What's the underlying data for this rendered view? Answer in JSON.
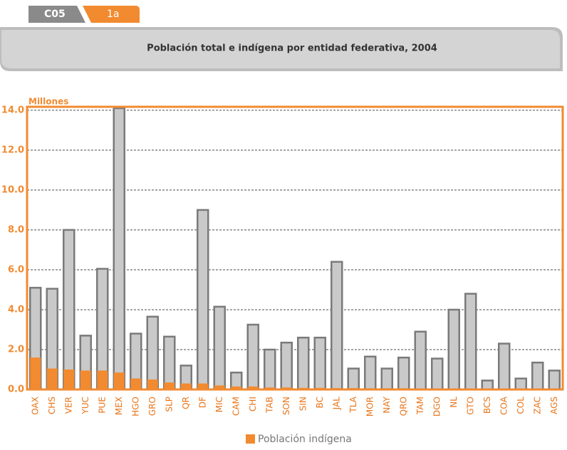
{
  "header": {
    "tab_code": "C05",
    "tab_sub": "1a"
  },
  "chart_data": {
    "type": "bar",
    "title": "Población total e indígena por entidad federativa, 2004",
    "y_label": "Millones",
    "categories": [
      "OAX",
      "CHS",
      "VER",
      "YUC",
      "PUE",
      "MEX",
      "HGO",
      "GRO",
      "SLP",
      "QR",
      "DF",
      "MIC",
      "CAM",
      "CHI",
      "TAB",
      "SON",
      "SIN",
      "BC",
      "JAL",
      "TLA",
      "MOR",
      "NAY",
      "QRO",
      "TAM",
      "DGO",
      "NL",
      "GTO",
      "BCS",
      "COA",
      "COL",
      "ZAC",
      "AGS"
    ],
    "series": [
      {
        "color": "#c9c9c9",
        "values": [
          5.1,
          5.05,
          8.0,
          2.7,
          6.05,
          14.1,
          2.8,
          3.65,
          2.65,
          1.2,
          9.0,
          4.15,
          0.85,
          3.25,
          2.0,
          2.35,
          2.6,
          2.6,
          6.4,
          1.05,
          1.65,
          1.05,
          1.6,
          2.9,
          1.55,
          4.0,
          4.8,
          0.45,
          2.3,
          0.55,
          1.35,
          0.95
        ]
      },
      {
        "name": "Población indígena",
        "color": "#f28a30",
        "values": [
          1.6,
          1.05,
          1.0,
          0.95,
          0.95,
          0.85,
          0.55,
          0.5,
          0.35,
          0.3,
          0.3,
          0.2,
          0.15,
          0.15,
          0.1,
          0.1,
          0.08,
          0.08,
          0.07,
          0.07,
          0.06,
          0.06,
          0.06,
          0.05,
          0.05,
          0.05,
          0.04,
          0.03,
          0.02,
          0.02,
          0.02,
          0.02
        ]
      }
    ],
    "ylim": [
      0,
      14.1
    ],
    "yticks": [
      {
        "value": 0,
        "label": "0.0"
      },
      {
        "value": 2,
        "label": "2.0"
      },
      {
        "value": 4,
        "label": "4.0"
      },
      {
        "value": 6,
        "label": "6.0"
      },
      {
        "value": 8,
        "label": "8.0"
      },
      {
        "value": 10,
        "label": "10.0"
      },
      {
        "value": 12,
        "label": "12.0"
      },
      {
        "value": 14,
        "label": "14.0"
      }
    ],
    "grid": true,
    "legend": "bottom"
  }
}
